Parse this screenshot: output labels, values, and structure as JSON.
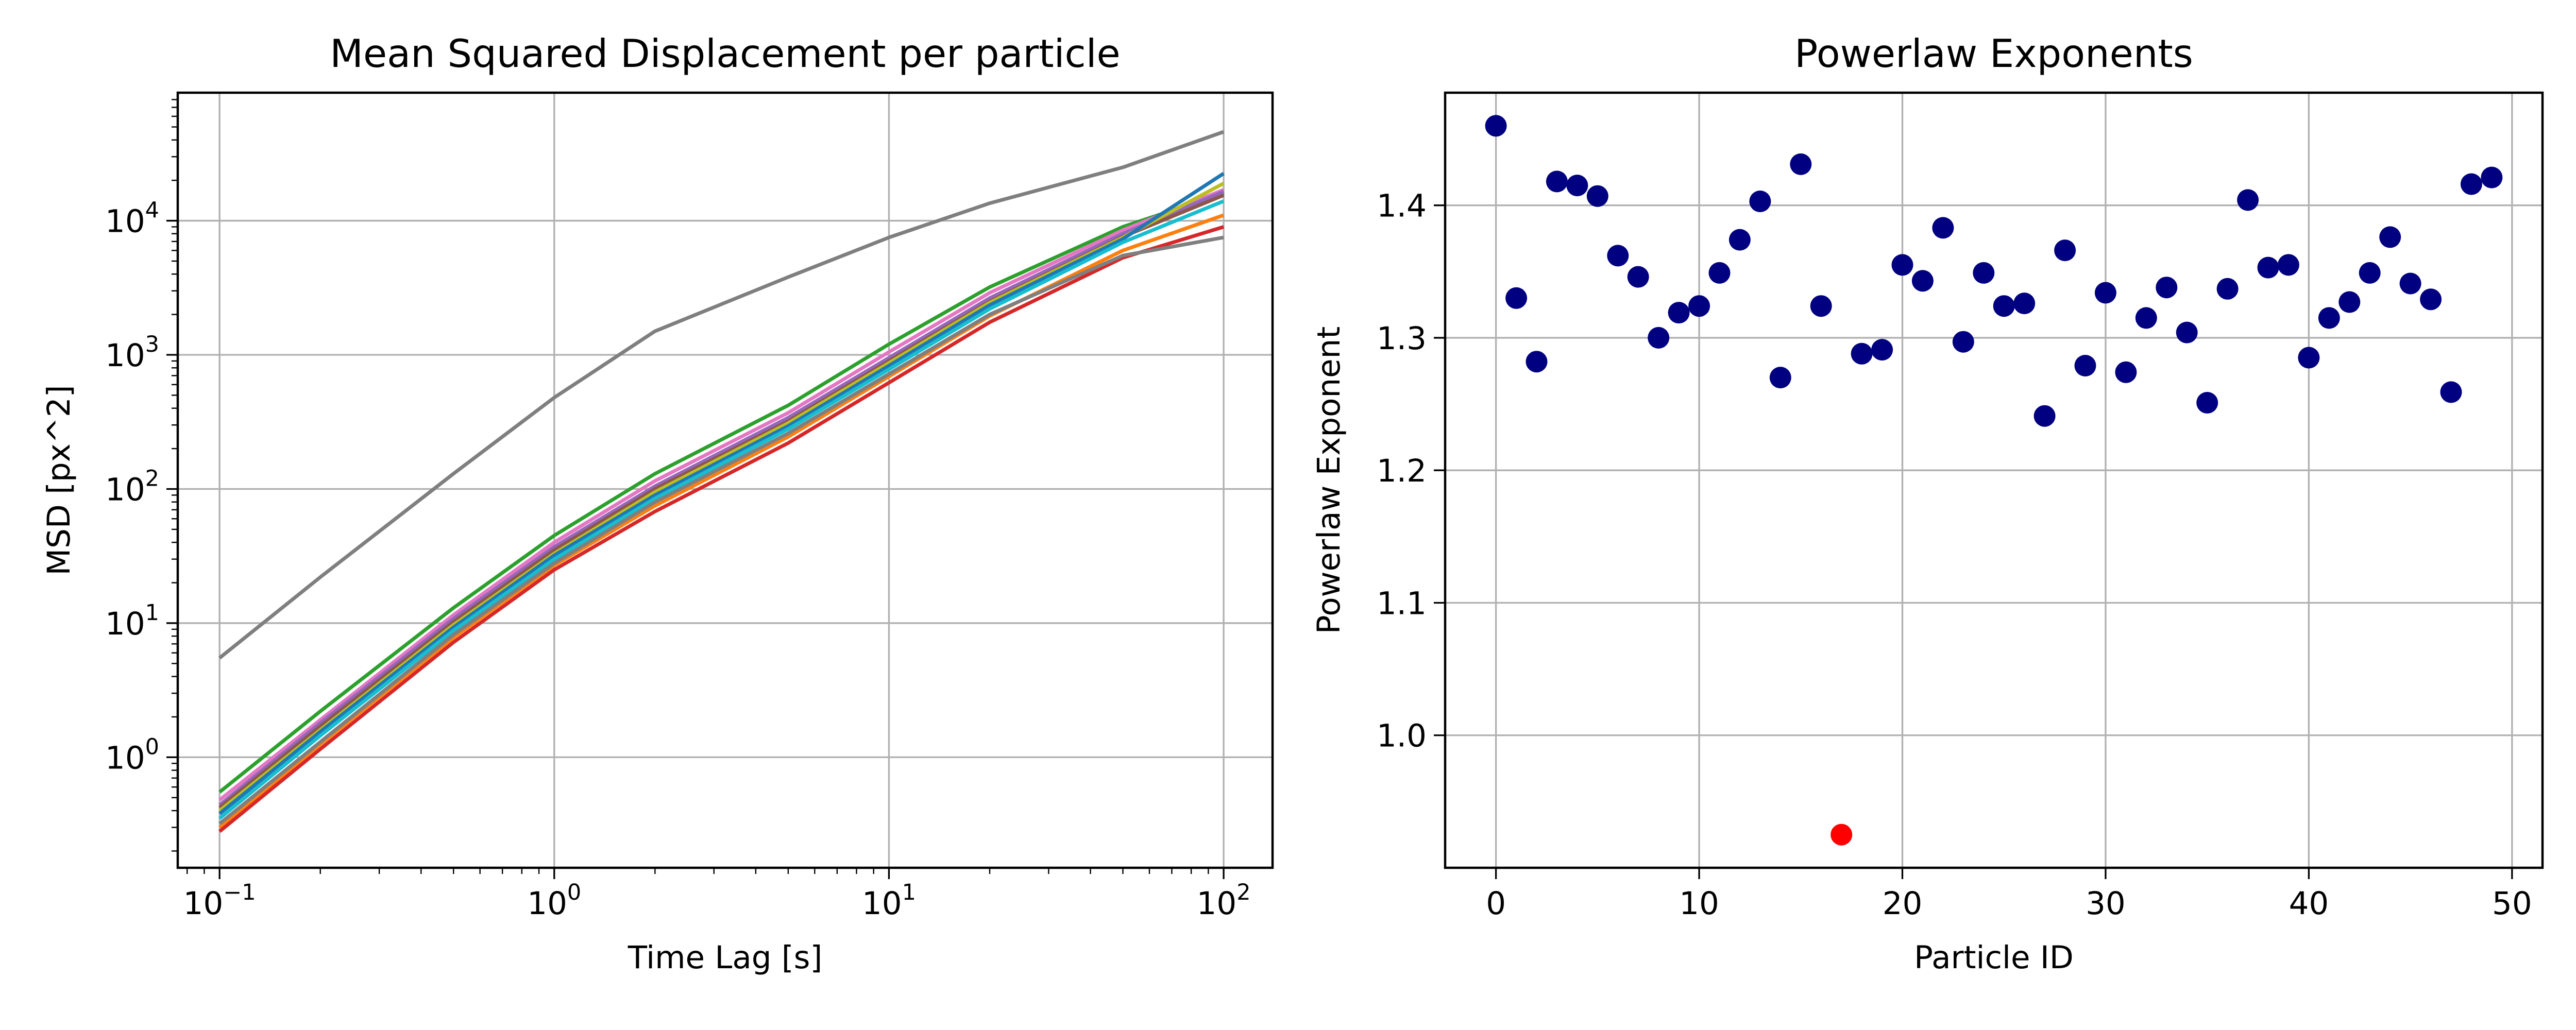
{
  "chart_data": [
    {
      "type": "line",
      "title": "Mean Squared Displacement per particle",
      "xlabel": "Time Lag [s]",
      "ylabel": "MSD [px^2]",
      "xscale": "log",
      "yscale": "log",
      "xlim": [
        0.075,
        140
      ],
      "ylim": [
        0.15,
        90000
      ],
      "grid": true,
      "x_ticks": [
        0.1,
        1,
        10,
        100
      ],
      "x_tick_labels": [
        {
          "base": "10",
          "exp": "−1"
        },
        {
          "base": "10",
          "exp": "0"
        },
        {
          "base": "10",
          "exp": "1"
        },
        {
          "base": "10",
          "exp": "2"
        }
      ],
      "y_ticks": [
        1,
        10,
        100,
        1000,
        10000
      ],
      "y_tick_labels": [
        {
          "base": "10",
          "exp": "0"
        },
        {
          "base": "10",
          "exp": "1"
        },
        {
          "base": "10",
          "exp": "2"
        },
        {
          "base": "10",
          "exp": "3"
        },
        {
          "base": "10",
          "exp": "4"
        }
      ],
      "x": [
        0.1,
        0.2,
        0.5,
        1,
        2,
        5,
        10,
        20,
        50,
        100
      ],
      "series": [
        {
          "color": "#7f7f7f",
          "values": [
            5.5,
            22,
            130,
            480,
            1500,
            3800,
            7500,
            13500,
            25000,
            46000
          ]
        },
        {
          "color": "#2ca02c",
          "values": [
            0.55,
            2.2,
            13,
            45,
            130,
            420,
            1200,
            3200,
            9000,
            16000
          ]
        },
        {
          "color": "#e377c2",
          "values": [
            0.48,
            1.9,
            11.5,
            40,
            115,
            370,
            1050,
            2900,
            8500,
            17000
          ]
        },
        {
          "color": "#9467bd",
          "values": [
            0.44,
            1.8,
            10.8,
            37,
            105,
            340,
            950,
            2650,
            8000,
            16500
          ]
        },
        {
          "color": "#8c564b",
          "values": [
            0.42,
            1.7,
            10.2,
            35,
            100,
            320,
            900,
            2500,
            7600,
            15500
          ]
        },
        {
          "color": "#bcbd22",
          "values": [
            0.4,
            1.6,
            9.7,
            33,
            95,
            310,
            870,
            2450,
            7500,
            19000
          ]
        },
        {
          "color": "#1f77b4",
          "values": [
            0.38,
            1.55,
            9.3,
            32,
            90,
            295,
            830,
            2350,
            7300,
            22500
          ]
        },
        {
          "color": "#17becf",
          "values": [
            0.35,
            1.45,
            8.8,
            30,
            85,
            280,
            780,
            2200,
            6900,
            14000
          ]
        },
        {
          "color": "#ff7f0e",
          "values": [
            0.3,
            1.25,
            7.8,
            27,
            75,
            245,
            690,
            1950,
            6000,
            11000
          ]
        },
        {
          "color": "#d62728",
          "values": [
            0.28,
            1.15,
            7.2,
            25,
            68,
            220,
            620,
            1750,
            5300,
            9000
          ]
        },
        {
          "color": "#7f7f7f",
          "values": [
            0.32,
            1.3,
            8.2,
            28,
            80,
            260,
            720,
            2000,
            5500,
            7500
          ]
        }
      ]
    },
    {
      "type": "scatter",
      "title": "Powerlaw Exponents",
      "xlabel": "Particle ID",
      "ylabel": "Powerlaw Exponent",
      "xlim": [
        -2.5,
        51.5
      ],
      "ylim": [
        0.9,
        1.485
      ],
      "grid": true,
      "x_ticks": [
        0,
        10,
        20,
        30,
        40,
        50
      ],
      "x_tick_labels": [
        "0",
        "10",
        "20",
        "30",
        "40",
        "50"
      ],
      "y_ticks": [
        1.0,
        1.1,
        1.2,
        1.3,
        1.4
      ],
      "y_tick_labels": [
        "1.0",
        "1.1",
        "1.2",
        "1.3",
        "1.4"
      ],
      "marker_color": "#000080",
      "highlight_color": "#ff0000",
      "highlight_index": 17,
      "x": [
        0,
        1,
        2,
        3,
        4,
        5,
        6,
        7,
        8,
        9,
        10,
        11,
        12,
        13,
        14,
        15,
        16,
        17,
        18,
        19,
        20,
        21,
        22,
        23,
        24,
        25,
        26,
        27,
        28,
        29,
        30,
        31,
        32,
        33,
        34,
        35,
        36,
        37,
        38,
        39,
        40,
        41,
        42,
        43,
        44,
        45,
        46,
        47,
        48,
        49
      ],
      "y": [
        1.46,
        1.33,
        1.282,
        1.418,
        1.415,
        1.407,
        1.362,
        1.346,
        1.3,
        1.319,
        1.324,
        1.349,
        1.374,
        1.403,
        1.27,
        1.431,
        1.324,
        0.925,
        1.288,
        1.291,
        1.355,
        1.343,
        1.383,
        1.297,
        1.349,
        1.324,
        1.326,
        1.241,
        1.366,
        1.279,
        1.334,
        1.274,
        1.315,
        1.338,
        1.304,
        1.251,
        1.337,
        1.404,
        1.353,
        1.355,
        1.285,
        1.315,
        1.327,
        1.349,
        1.376,
        1.341,
        1.329,
        1.259,
        1.416,
        1.421
      ]
    }
  ]
}
